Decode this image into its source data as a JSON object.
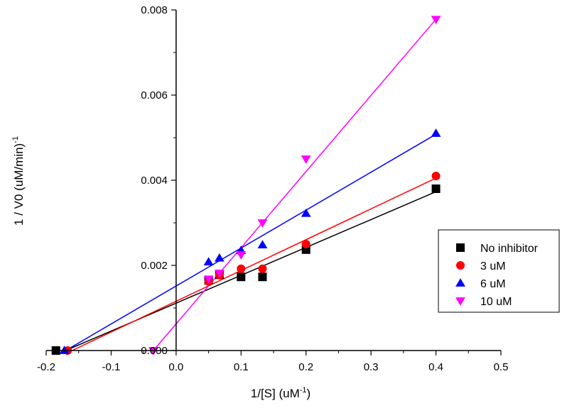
{
  "chart_data": {
    "type": "scatter",
    "title": "",
    "xlabel": "1/[S] (uM",
    "xlabel_sup": "-1",
    "xlabel_tail": ")",
    "ylabel": "1 / V0 (uM/min)",
    "ylabel_sup": "-1",
    "xlim": [
      -0.2,
      0.5
    ],
    "ylim": [
      0,
      0.008
    ],
    "x_ticks": [
      -0.2,
      -0.1,
      0.0,
      0.1,
      0.2,
      0.3,
      0.4,
      0.5
    ],
    "x_tick_labels": [
      "-0.2",
      "-0.1",
      "0.0",
      "0.1",
      "0.2",
      "0.3",
      "0.4",
      "0.5"
    ],
    "y_ticks": [
      0.0,
      0.002,
      0.004,
      0.006,
      0.008
    ],
    "y_tick_labels": [
      "0.000",
      "0.002",
      "0.004",
      "0.006",
      "0.008"
    ],
    "legend_position": "right",
    "series": [
      {
        "name": "No inhibitor",
        "marker": "square",
        "color": "#000000",
        "points": [
          [
            -0.185,
            0.0
          ],
          [
            0.05,
            0.00165
          ],
          [
            0.0667,
            0.00178
          ],
          [
            0.1,
            0.00173
          ],
          [
            0.133,
            0.00173
          ],
          [
            0.2,
            0.00237
          ],
          [
            0.4,
            0.0038
          ]
        ],
        "fit_line": [
          [
            -0.17,
            0.0
          ],
          [
            0.4,
            0.00373
          ]
        ]
      },
      {
        "name": "3 uM",
        "marker": "circle",
        "color": "#ff0000",
        "points": [
          [
            -0.167,
            0.0
          ],
          [
            0.05,
            0.00162
          ],
          [
            0.0667,
            0.00177
          ],
          [
            0.1,
            0.00192
          ],
          [
            0.133,
            0.00192
          ],
          [
            0.2,
            0.0025
          ],
          [
            0.4,
            0.0041
          ]
        ],
        "fit_line": [
          [
            -0.16,
            0.0
          ],
          [
            0.4,
            0.00405
          ]
        ]
      },
      {
        "name": "6 uM",
        "marker": "triangle-up",
        "color": "#0000ff",
        "points": [
          [
            -0.172,
            0.0
          ],
          [
            0.05,
            0.00208
          ],
          [
            0.0667,
            0.00217
          ],
          [
            0.1,
            0.00235
          ],
          [
            0.133,
            0.00248
          ],
          [
            0.2,
            0.00322
          ],
          [
            0.4,
            0.0051
          ]
        ],
        "fit_line": [
          [
            -0.17,
            0.0
          ],
          [
            0.4,
            0.00508
          ]
        ]
      },
      {
        "name": "10 uM",
        "marker": "triangle-down",
        "color": "#ff00ff",
        "points": [
          [
            -0.035,
            0.0
          ],
          [
            0.05,
            0.00168
          ],
          [
            0.0667,
            0.00182
          ],
          [
            0.1,
            0.00225
          ],
          [
            0.133,
            0.003
          ],
          [
            0.2,
            0.0045
          ],
          [
            0.4,
            0.00778
          ]
        ],
        "fit_line": [
          [
            -0.035,
            0.0
          ],
          [
            0.4,
            0.00778
          ]
        ]
      }
    ]
  }
}
